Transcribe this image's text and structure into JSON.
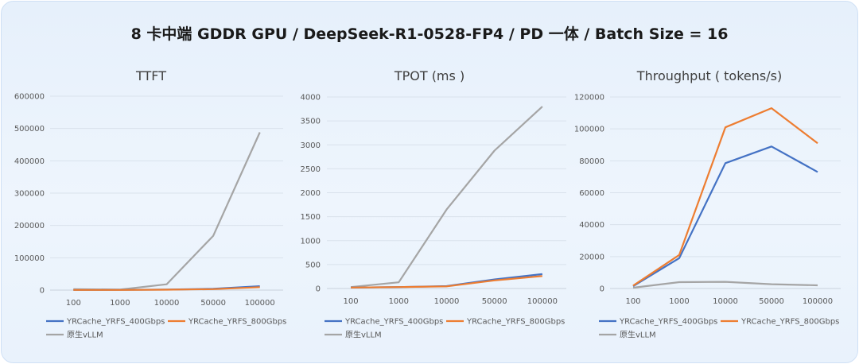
{
  "title": "8 卡中端 GDDR GPU / DeepSeek-R1-0528-FP4 / PD 一体 / Batch Size = 16",
  "colors": {
    "YRCache_YRFS_400Gbps": "#4472c4",
    "YRCache_YRFS_800Gbps": "#ed7d31",
    "原生vLLM": "#a5a5a5",
    "grid": "#d9e2ec"
  },
  "chart_data": [
    {
      "type": "line",
      "title": "TTFT",
      "categories": [
        "100",
        "1000",
        "10000",
        "50000",
        "100000"
      ],
      "ylim": [
        0,
        600000
      ],
      "yticks": [
        "0",
        "100000",
        "200000",
        "300000",
        "400000",
        "500000",
        "600000"
      ],
      "grid": true,
      "legend": "bottom",
      "series": [
        {
          "name": "YRCache_YRFS_400Gbps",
          "values": [
            500,
            800,
            1500,
            4000,
            12000
          ]
        },
        {
          "name": "YRCache_YRFS_800Gbps",
          "values": [
            400,
            600,
            1200,
            3000,
            9000
          ]
        },
        {
          "name": "原生vLLM",
          "values": [
            3000,
            1500,
            18000,
            168000,
            488000
          ]
        }
      ]
    },
    {
      "type": "line",
      "title": "TPOT (ms )",
      "categories": [
        "100",
        "1000",
        "10000",
        "50000",
        "100000"
      ],
      "ylim": [
        0,
        4000
      ],
      "yticks": [
        "0",
        "500",
        "1000",
        "1500",
        "2000",
        "2500",
        "3000",
        "3500",
        "4000"
      ],
      "grid": true,
      "legend": "bottom",
      "series": [
        {
          "name": "YRCache_YRFS_400Gbps",
          "values": [
            20,
            30,
            50,
            190,
            300
          ]
        },
        {
          "name": "YRCache_YRFS_800Gbps",
          "values": [
            20,
            30,
            45,
            170,
            260
          ]
        },
        {
          "name": "原生vLLM",
          "values": [
            30,
            130,
            1650,
            2880,
            3800
          ]
        }
      ]
    },
    {
      "type": "line",
      "title": "Throughput ( tokens/s)",
      "categories": [
        "100",
        "1000",
        "10000",
        "50000",
        "100000"
      ],
      "ylim": [
        0,
        120000
      ],
      "yticks": [
        "0",
        "20000",
        "40000",
        "60000",
        "80000",
        "100000",
        "120000"
      ],
      "grid": true,
      "legend": "bottom",
      "series": [
        {
          "name": "YRCache_YRFS_400Gbps",
          "values": [
            1500,
            19000,
            78500,
            89000,
            73000
          ]
        },
        {
          "name": "YRCache_YRFS_800Gbps",
          "values": [
            1800,
            21000,
            101000,
            113000,
            91000
          ]
        },
        {
          "name": "原生vLLM",
          "values": [
            500,
            4000,
            4200,
            2700,
            2000
          ]
        }
      ]
    }
  ]
}
